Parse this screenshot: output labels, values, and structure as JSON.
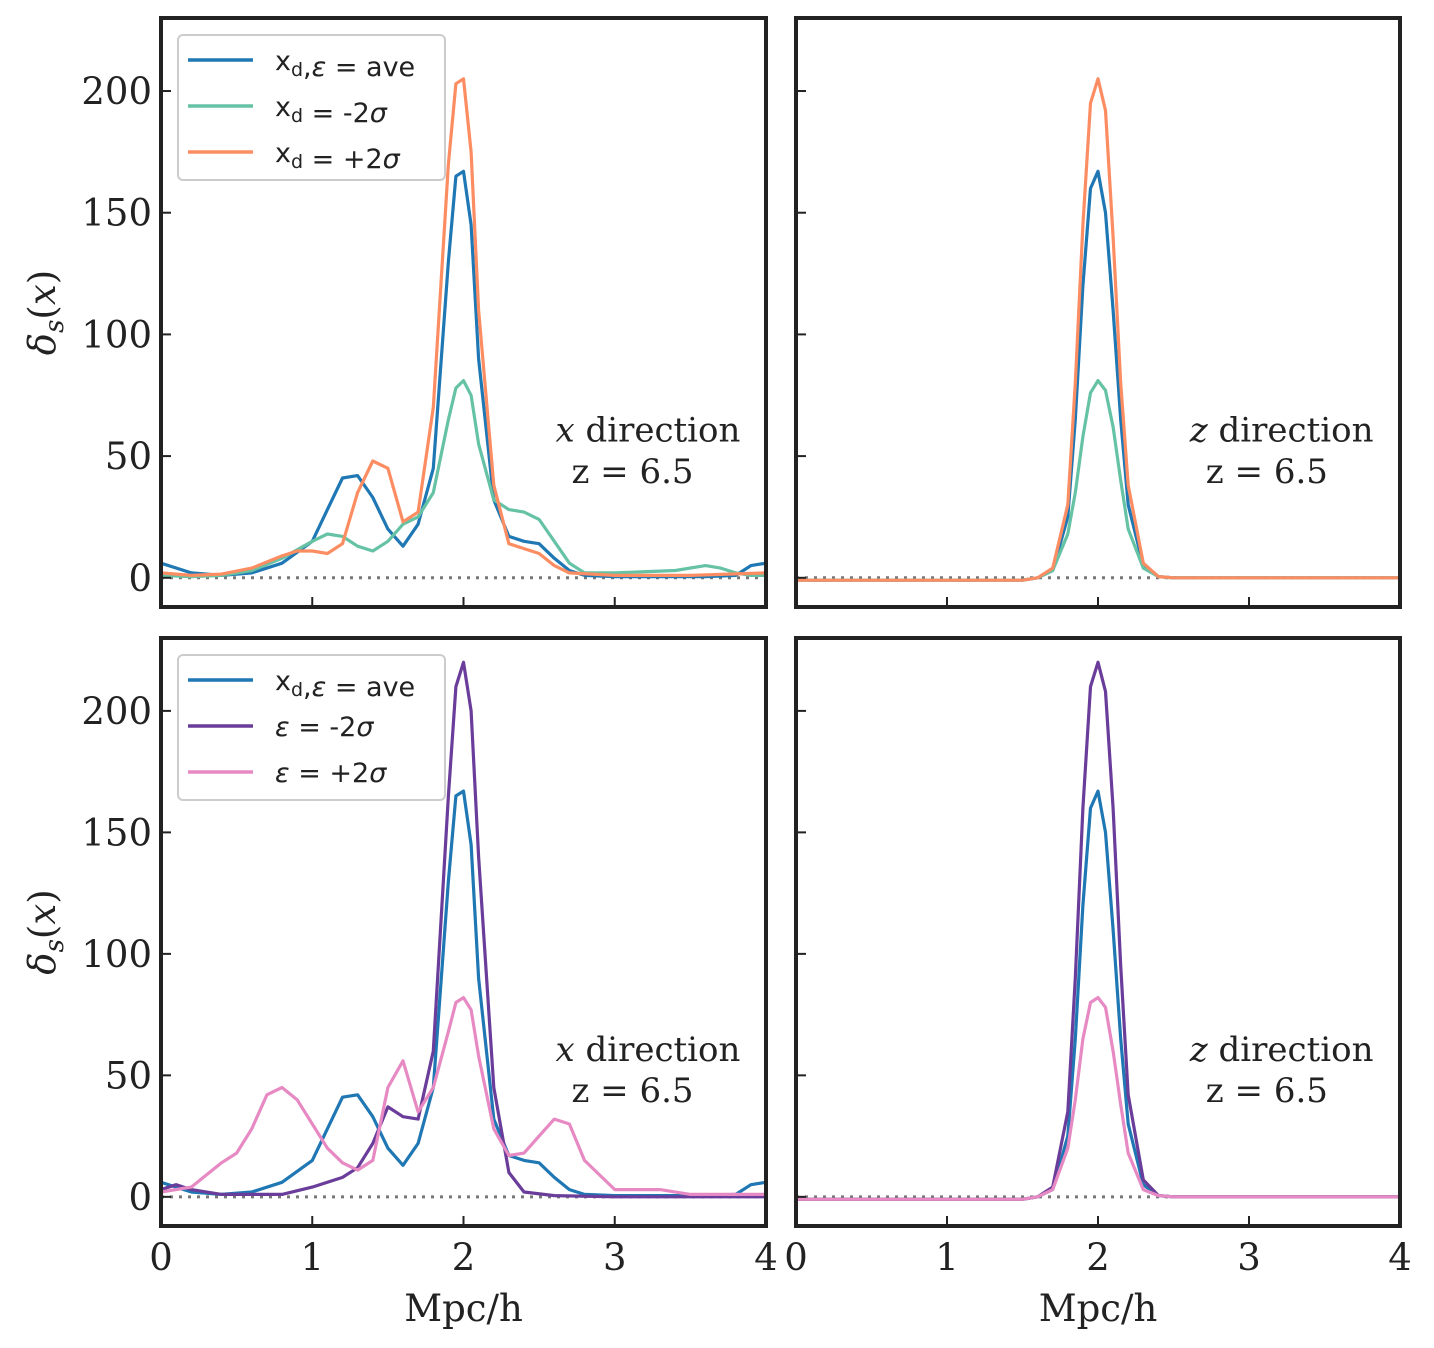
{
  "chart_data": [
    {
      "type": "line",
      "panel": "top-left",
      "xlim": [
        0,
        4
      ],
      "ylim": [
        -12,
        230
      ],
      "yticks": [
        0,
        50,
        100,
        150,
        200
      ],
      "xticks": [
        0,
        1,
        2,
        3,
        4
      ],
      "show_x_tick_labels": false,
      "show_y_tick_labels": true,
      "ylabel": "δ_s(x)",
      "xlabel": "",
      "annotation": {
        "axis_var": "x",
        "direction": "direction",
        "z_text": "z = 6.5"
      },
      "legend": "top-left",
      "series": [
        {
          "name": "ave",
          "legend_parts": [
            "x",
            "d",
            ",ε = ave"
          ],
          "color": "#1f77b4",
          "x": [
            0,
            0.2,
            0.4,
            0.6,
            0.8,
            1.0,
            1.1,
            1.2,
            1.3,
            1.4,
            1.5,
            1.6,
            1.7,
            1.8,
            1.9,
            1.95,
            2.0,
            2.05,
            2.1,
            2.2,
            2.3,
            2.4,
            2.5,
            2.6,
            2.7,
            2.8,
            3.0,
            3.4,
            3.6,
            3.8,
            3.9,
            4.0
          ],
          "y": [
            6,
            2,
            1,
            2,
            6,
            15,
            28,
            41,
            42,
            33,
            20,
            13,
            22,
            45,
            130,
            165,
            167,
            145,
            90,
            32,
            17,
            15,
            14,
            8,
            3,
            1,
            0.5,
            0.5,
            0.5,
            1,
            5,
            6
          ]
        },
        {
          "name": "-2σ",
          "legend_parts": [
            "x",
            "d",
            " = -2σ"
          ],
          "color": "#66c2a5",
          "x": [
            0,
            0.2,
            0.4,
            0.6,
            0.8,
            1.0,
            1.1,
            1.2,
            1.3,
            1.4,
            1.5,
            1.6,
            1.7,
            1.8,
            1.9,
            1.95,
            2.0,
            2.05,
            2.1,
            2.2,
            2.3,
            2.4,
            2.5,
            2.6,
            2.7,
            2.8,
            3.0,
            3.4,
            3.6,
            3.7,
            3.8,
            3.9,
            4.0
          ],
          "y": [
            1,
            0.5,
            1,
            3,
            8,
            15,
            18,
            17,
            13,
            11,
            15,
            22,
            25,
            35,
            65,
            78,
            81,
            75,
            55,
            32,
            28,
            27,
            24,
            15,
            6,
            2,
            2,
            3,
            5,
            4,
            2,
            1,
            1
          ]
        },
        {
          "name": "+2σ",
          "legend_parts": [
            "x",
            "d",
            " = +2σ"
          ],
          "color": "#fc8d62",
          "x": [
            0,
            0.2,
            0.4,
            0.6,
            0.8,
            0.9,
            1.0,
            1.1,
            1.2,
            1.3,
            1.4,
            1.5,
            1.6,
            1.7,
            1.8,
            1.9,
            1.95,
            2.0,
            2.05,
            2.1,
            2.2,
            2.3,
            2.4,
            2.5,
            2.6,
            2.7,
            3.0,
            3.5,
            4.0
          ],
          "y": [
            2,
            1,
            1.5,
            4,
            9,
            11,
            11,
            10,
            14,
            35,
            48,
            45,
            23,
            27,
            70,
            170,
            203,
            205,
            175,
            110,
            38,
            14,
            12,
            10,
            5,
            2,
            1,
            1,
            2
          ]
        }
      ]
    },
    {
      "type": "line",
      "panel": "top-right",
      "xlim": [
        0,
        4
      ],
      "ylim": [
        -12,
        230
      ],
      "yticks": [
        0,
        50,
        100,
        150,
        200
      ],
      "xticks": [
        0,
        1,
        2,
        3,
        4
      ],
      "show_x_tick_labels": false,
      "show_y_tick_labels": false,
      "ylabel": "",
      "xlabel": "",
      "annotation": {
        "axis_var": "z",
        "direction": "direction",
        "z_text": "z = 6.5"
      },
      "series": [
        {
          "name": "ave",
          "color": "#1f77b4",
          "x": [
            0,
            1.5,
            1.6,
            1.7,
            1.8,
            1.85,
            1.9,
            1.95,
            2.0,
            2.05,
            2.1,
            2.15,
            2.2,
            2.3,
            2.4,
            2.5,
            4.0
          ],
          "y": [
            -1,
            -1,
            0,
            3,
            25,
            65,
            120,
            160,
            167,
            150,
            110,
            65,
            30,
            5,
            0.5,
            0,
            0
          ]
        },
        {
          "name": "-2σ",
          "color": "#66c2a5",
          "x": [
            0,
            1.5,
            1.6,
            1.7,
            1.8,
            1.85,
            1.9,
            1.95,
            2.0,
            2.05,
            2.1,
            2.15,
            2.2,
            2.3,
            2.4,
            2.5,
            4.0
          ],
          "y": [
            -1,
            -1,
            0,
            3,
            18,
            35,
            58,
            76,
            81,
            77,
            62,
            40,
            20,
            4,
            0.5,
            0,
            0
          ]
        },
        {
          "name": "+2σ",
          "color": "#fc8d62",
          "x": [
            0,
            1.5,
            1.6,
            1.7,
            1.8,
            1.85,
            1.9,
            1.95,
            2.0,
            2.05,
            2.1,
            2.15,
            2.2,
            2.3,
            2.4,
            2.5,
            4.0
          ],
          "y": [
            -1,
            -1,
            0,
            4,
            30,
            80,
            145,
            195,
            205,
            192,
            140,
            80,
            38,
            6,
            0.5,
            0,
            0
          ]
        }
      ]
    },
    {
      "type": "line",
      "panel": "bottom-left",
      "xlim": [
        0,
        4
      ],
      "ylim": [
        -12,
        230
      ],
      "yticks": [
        0,
        50,
        100,
        150,
        200
      ],
      "xticks": [
        0,
        1,
        2,
        3,
        4
      ],
      "show_x_tick_labels": true,
      "show_y_tick_labels": true,
      "ylabel": "δ_s(x)",
      "xlabel": "Mpc/h",
      "annotation": {
        "axis_var": "x",
        "direction": "direction",
        "z_text": "z = 6.5"
      },
      "legend": "top-left",
      "series": [
        {
          "name": "ave",
          "legend_parts": [
            "x",
            "d",
            ",ε = ave"
          ],
          "color": "#1f77b4",
          "x": [
            0,
            0.2,
            0.4,
            0.6,
            0.8,
            1.0,
            1.1,
            1.2,
            1.3,
            1.4,
            1.5,
            1.6,
            1.7,
            1.8,
            1.9,
            1.95,
            2.0,
            2.05,
            2.1,
            2.2,
            2.3,
            2.4,
            2.5,
            2.6,
            2.7,
            2.8,
            3.0,
            3.4,
            3.6,
            3.8,
            3.9,
            4.0
          ],
          "y": [
            6,
            2,
            1,
            2,
            6,
            15,
            28,
            41,
            42,
            33,
            20,
            13,
            22,
            45,
            130,
            165,
            167,
            145,
            90,
            32,
            17,
            15,
            14,
            8,
            3,
            1,
            0.5,
            0.5,
            0.5,
            1,
            5,
            6
          ]
        },
        {
          "name": "ε -2σ",
          "legend_parts": [
            "",
            "",
            "ε = -2σ"
          ],
          "color": "#6a3d9a",
          "x": [
            0,
            0.1,
            0.2,
            0.4,
            0.6,
            0.8,
            1.0,
            1.2,
            1.3,
            1.4,
            1.5,
            1.6,
            1.7,
            1.8,
            1.9,
            1.95,
            2.0,
            2.05,
            2.1,
            2.2,
            2.3,
            2.4,
            2.6,
            3.0,
            4.0
          ],
          "y": [
            3,
            5,
            3,
            1,
            1,
            1,
            4,
            8,
            12,
            22,
            37,
            33,
            32,
            60,
            165,
            210,
            220,
            200,
            140,
            45,
            10,
            2,
            0.5,
            0,
            0
          ]
        },
        {
          "name": "ε +2σ",
          "legend_parts": [
            "",
            "",
            "ε = +2σ"
          ],
          "color": "#e78ac3",
          "x": [
            0,
            0.2,
            0.4,
            0.5,
            0.6,
            0.7,
            0.8,
            0.9,
            1.0,
            1.1,
            1.2,
            1.3,
            1.4,
            1.5,
            1.6,
            1.7,
            1.8,
            1.9,
            1.95,
            2.0,
            2.05,
            2.1,
            2.2,
            2.3,
            2.4,
            2.5,
            2.6,
            2.7,
            2.8,
            3.0,
            3.3,
            3.5,
            4.0
          ],
          "y": [
            2,
            4,
            14,
            18,
            28,
            42,
            45,
            40,
            30,
            20,
            14,
            11,
            15,
            45,
            56,
            35,
            45,
            68,
            80,
            82,
            77,
            58,
            28,
            17,
            18,
            25,
            32,
            30,
            15,
            3,
            3,
            1,
            1
          ]
        }
      ]
    },
    {
      "type": "line",
      "panel": "bottom-right",
      "xlim": [
        0,
        4
      ],
      "ylim": [
        -12,
        230
      ],
      "yticks": [
        0,
        50,
        100,
        150,
        200
      ],
      "xticks": [
        0,
        1,
        2,
        3,
        4
      ],
      "show_x_tick_labels": true,
      "show_y_tick_labels": false,
      "ylabel": "",
      "xlabel": "Mpc/h",
      "annotation": {
        "axis_var": "z",
        "direction": "direction",
        "z_text": "z = 6.5"
      },
      "series": [
        {
          "name": "ave",
          "color": "#1f77b4",
          "x": [
            0,
            1.5,
            1.6,
            1.7,
            1.8,
            1.85,
            1.9,
            1.95,
            2.0,
            2.05,
            2.1,
            2.15,
            2.2,
            2.3,
            2.4,
            2.5,
            4.0
          ],
          "y": [
            -1,
            -1,
            0,
            3,
            25,
            65,
            120,
            160,
            167,
            150,
            110,
            65,
            30,
            5,
            0.5,
            0,
            0
          ]
        },
        {
          "name": "ε -2σ",
          "color": "#6a3d9a",
          "x": [
            0,
            1.5,
            1.6,
            1.7,
            1.8,
            1.85,
            1.9,
            1.95,
            2.0,
            2.05,
            2.1,
            2.15,
            2.2,
            2.3,
            2.4,
            2.5,
            4.0
          ],
          "y": [
            -1,
            -1,
            0,
            4,
            35,
            90,
            160,
            210,
            220,
            208,
            160,
            95,
            42,
            7,
            0.5,
            0,
            0
          ]
        },
        {
          "name": "ε +2σ",
          "color": "#e78ac3",
          "x": [
            0,
            1.5,
            1.6,
            1.7,
            1.8,
            1.85,
            1.9,
            1.95,
            2.0,
            2.05,
            2.1,
            2.15,
            2.2,
            2.3,
            2.4,
            2.5,
            4.0
          ],
          "y": [
            -1,
            -1,
            0,
            3,
            20,
            40,
            65,
            80,
            82,
            78,
            60,
            38,
            18,
            3,
            0.5,
            0,
            0
          ]
        }
      ]
    }
  ]
}
